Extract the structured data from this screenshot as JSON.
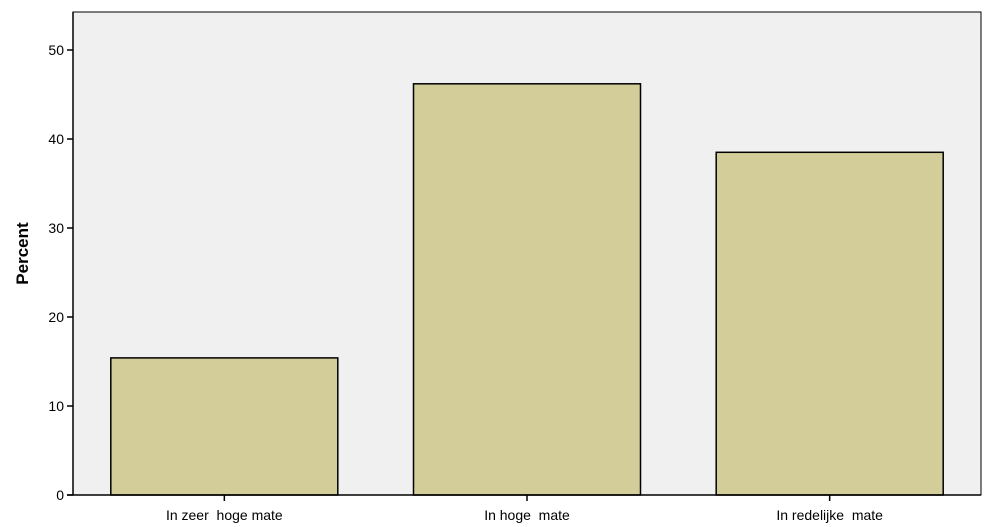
{
  "chart_data": {
    "type": "bar",
    "title": "",
    "xlabel": "",
    "ylabel": "Percent",
    "categories": [
      "In zeer  hoge mate",
      "In hoge  mate",
      "In redelijke  mate"
    ],
    "values": [
      15.4,
      46.2,
      38.5
    ],
    "ylim": [
      0,
      50
    ],
    "yticks": [
      "0",
      "10",
      "20",
      "30",
      "40",
      "50"
    ],
    "grid": false,
    "legend": "none",
    "colors": {
      "plot_background": "#f0f0f0",
      "bar_fill": "#d3ce99",
      "bar_stroke": "#000000",
      "axis": "#000000"
    }
  }
}
